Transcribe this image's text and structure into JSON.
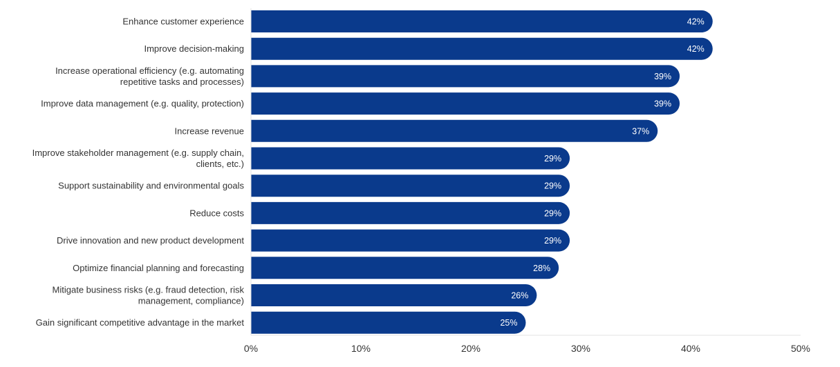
{
  "chart_data": {
    "type": "bar",
    "orientation": "horizontal",
    "title": "",
    "xlabel": "",
    "ylabel": "",
    "xlim": [
      0,
      50
    ],
    "x_ticks": [
      "0%",
      "10%",
      "20%",
      "30%",
      "40%",
      "50%"
    ],
    "x_tick_values": [
      0,
      10,
      20,
      30,
      40,
      50
    ],
    "grid": false,
    "legend": "none",
    "bar_color": "#0a3a8c",
    "label_color": "#ffffff",
    "text_color": "#333333",
    "axis_color": "#e3e3e3",
    "categories": [
      [
        "Enhance customer experience"
      ],
      [
        "Improve decision-making"
      ],
      [
        "Increase operational efficiency (e.g. automating",
        "repetitive tasks and processes)"
      ],
      [
        "Improve data management (e.g. quality, protection)"
      ],
      [
        "Increase revenue"
      ],
      [
        "Improve stakeholder management (e.g. supply chain,",
        "clients, etc.)"
      ],
      [
        "Support sustainability and environmental goals"
      ],
      [
        "Reduce costs"
      ],
      [
        "Drive innovation and new product development"
      ],
      [
        "Optimize financial planning and forecasting"
      ],
      [
        "Mitigate business risks (e.g. fraud detection, risk",
        "management, compliance)"
      ],
      [
        "Gain significant competitive advantage in the market"
      ]
    ],
    "values": [
      42,
      42,
      39,
      39,
      37,
      29,
      29,
      29,
      29,
      28,
      26,
      25
    ],
    "value_labels": [
      "42%",
      "42%",
      "39%",
      "39%",
      "37%",
      "29%",
      "29%",
      "29%",
      "29%",
      "28%",
      "26%",
      "25%"
    ]
  }
}
